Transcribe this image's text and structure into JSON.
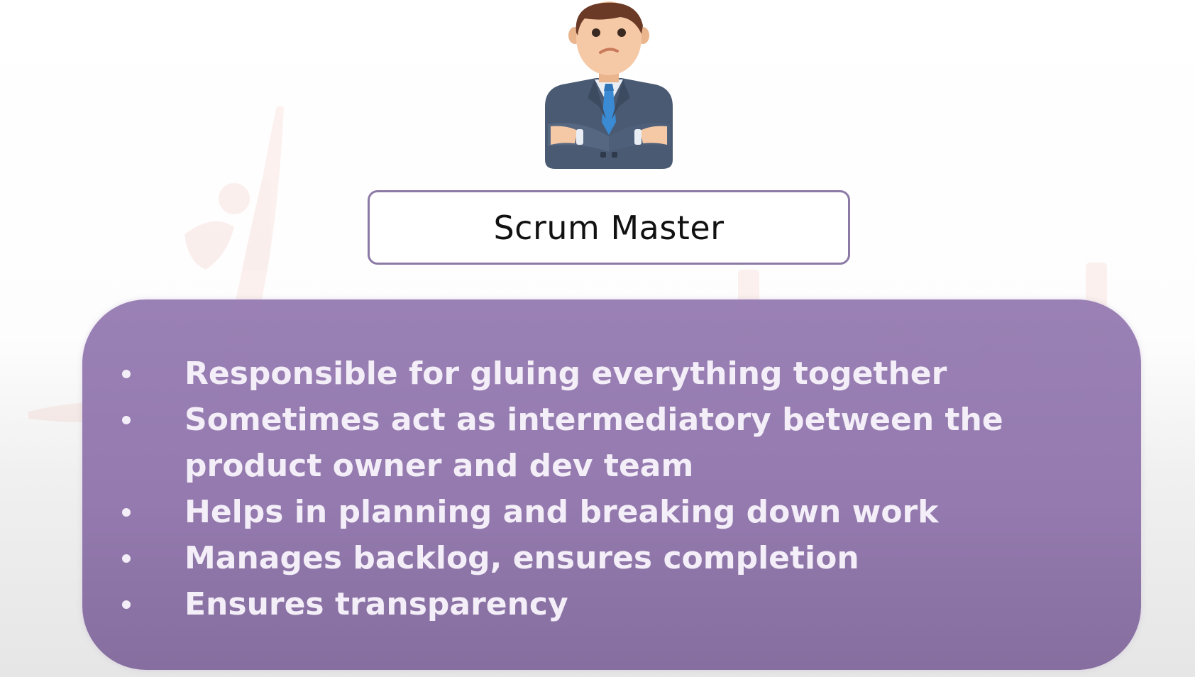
{
  "slide": {
    "role_title": "Scrum Master",
    "avatar_icon": "businessman-arms-crossed-icon",
    "bullets": [
      "Responsible for gluing everything together",
      "Sometimes act as intermediatory between the product owner and dev team",
      "Helps in planning and breaking down work",
      "Manages backlog, ensures completion",
      "Ensures transparency"
    ]
  },
  "colors": {
    "panel": "#9278ae",
    "title_border": "#8c7aa6",
    "bullet_text": "#f3eef7",
    "suit": "#4a5a73",
    "tie": "#3a8ad4",
    "skin": "#f6c9a6",
    "hair": "#6b3a26"
  }
}
